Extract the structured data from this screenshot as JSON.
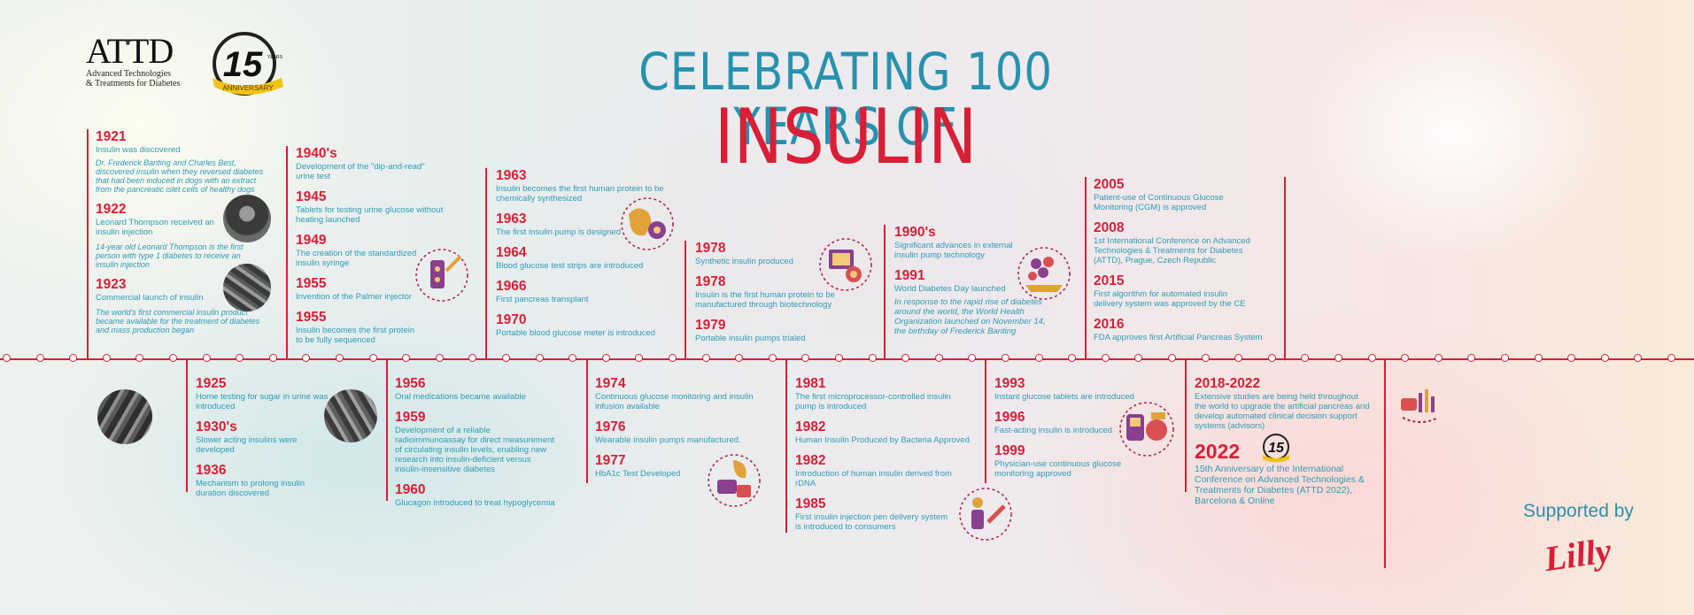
{
  "header": {
    "logo_word": "ATTD",
    "logo_line1": "Advanced Technologies",
    "logo_line2": "& Treatments for Diabetes",
    "badge_number": "15",
    "badge_years": "YEARS",
    "badge_ribbon": "ANNIVERSARY",
    "title_line1": "CELEBRATING 100 YEARS OF",
    "title_line2": "INSULIN"
  },
  "top": {
    "c1": [
      {
        "year": "1921",
        "text": "Insulin was discovered",
        "note": "Dr. Frederick Banting and Charles Best, discovered insulin when they reversed diabetes that had been induced in dogs with an extract from the pancreatic islet cells of healthy dogs"
      },
      {
        "year": "1922",
        "text": "Leonard Thompson received an insulin injection",
        "note": "14-year old Leonard Thompson is the first person with type 1 diabetes to receive an insulin injection"
      },
      {
        "year": "1923",
        "text": "Commercial launch of insulin",
        "note": "The world's first commercial insulin product became available for the treatment of diabetes and mass production began"
      }
    ],
    "c2": [
      {
        "year": "1940's",
        "text": "Development of the \"dip-and-read\" urine test"
      },
      {
        "year": "1945",
        "text": "Tablets for testing urine glucose without heating launched"
      },
      {
        "year": "1949",
        "text": "The creation of the standardized  insulin syringe"
      },
      {
        "year": "1955",
        "text": "Invention of the Palmer injector"
      },
      {
        "year": "1955",
        "text": "Insulin becomes the first protein  to be fully sequenced"
      }
    ],
    "c3": [
      {
        "year": "1963",
        "text": "Insulin becomes the first human protein to be chemically synthesized"
      },
      {
        "year": "1963",
        "text": "The first insulin pump is designed"
      },
      {
        "year": "1964",
        "text": "Blood glucose test strips are introduced"
      },
      {
        "year": "1966",
        "text": "First pancreas transplant"
      },
      {
        "year": "1970",
        "text": "Portable blood glucose meter is introduced"
      }
    ],
    "c4": [
      {
        "year": "1978",
        "text": "Synthetic insulin produced"
      },
      {
        "year": "1978",
        "text": "Insulin is the first human protein to be manufactured through biotechnology"
      },
      {
        "year": "1979",
        "text": "Portable insulin pumps trialed"
      }
    ],
    "c5": [
      {
        "year": "1990's",
        "text": "Significant advances in external insulin pump technology"
      },
      {
        "year": "1991",
        "text": "World Diabetes Day launched",
        "note": "In response to the rapid rise of diabetes around the world, the World Health Organization launched on November 14, the birthday of Frederick Banting"
      }
    ],
    "c6": [
      {
        "year": "2005",
        "text": "Patient-use of Continuous Glucose Monitoring (CGM) is approved"
      },
      {
        "year": "2008",
        "text": "1st International Conference on Advanced Technologies & Treatments for Diabetes (ATTD), Prague, Czech Republic"
      },
      {
        "year": "2015",
        "text": "First algorithm for automated insulin delivery system was approved by the CE"
      },
      {
        "year": "2016",
        "text": "FDA approves first Artificial Pancreas System"
      }
    ]
  },
  "bottom": {
    "c1": [
      {
        "year": "1925",
        "text": "Home testing for sugar in urine was introduced"
      },
      {
        "year": "1930's",
        "text": "Slower acting insulins were developed"
      },
      {
        "year": "1936",
        "text": "Mechanism to prolong insulin duration discovered"
      }
    ],
    "c2": [
      {
        "year": "1956",
        "text": "Oral medications became available"
      },
      {
        "year": "1959",
        "text": "Development of a reliable radioimmunoassay for direct measurement of circulating insulin levels, enabling new research into insulin-deficient versus insulin-insensitive diabetes"
      },
      {
        "year": "1960",
        "text": "Glucagon introduced to treat hypoglycemia"
      }
    ],
    "c3": [
      {
        "year": "1974",
        "text": "Continuous glucose monitoring and insulin infusion available"
      },
      {
        "year": "1976",
        "text": "Wearable insulin pumps manufactured."
      },
      {
        "year": "1977",
        "text": "HbA1c Test Developed"
      }
    ],
    "c4": [
      {
        "year": "1981",
        "text": "The first microprocessor-controlled insulin pump is introduced"
      },
      {
        "year": "1982",
        "text": "Human Insulin Produced by Bacteria Approved"
      },
      {
        "year": "1982",
        "text": "Introduction of human insulin derived from rDNA"
      },
      {
        "year": "1985",
        "text": "First insulin injection pen delivery system is introduced to consumers"
      }
    ],
    "c5": [
      {
        "year": "1993",
        "text": "Instant glucose tablets are introduced"
      },
      {
        "year": "1996",
        "text": "Fast-acting insulin is introduced"
      },
      {
        "year": "1999",
        "text": "Physician-use continuous glucose monitoring approved"
      }
    ],
    "c6": [
      {
        "year": "2018-2022",
        "text": "Extensive studies are being held throughout the world to upgrade the artificial pancreas and develop automated clinical decision support systems (advisors)"
      },
      {
        "year": "2022",
        "text": "15th Anniversary of the International Conference on Advanced Technologies & Treatments for Diabetes (ATTD 2022), Barcelona & Online"
      }
    ]
  },
  "footer": {
    "supported_by": "Supported by",
    "sponsor": "Lilly"
  },
  "colors": {
    "red": "#d81f36",
    "teal": "#2d9bb3",
    "title_teal": "#2792ae",
    "icon_purple": "#8a3f8f"
  },
  "icons": [
    "pancreas-icon",
    "insulin-pen-icon",
    "insulin-pump-icon",
    "glucose-meter-icon",
    "cells-icon",
    "doctor-icon",
    "pen-injection-icon",
    "cgm-device-icon",
    "closed-loop-icon"
  ]
}
